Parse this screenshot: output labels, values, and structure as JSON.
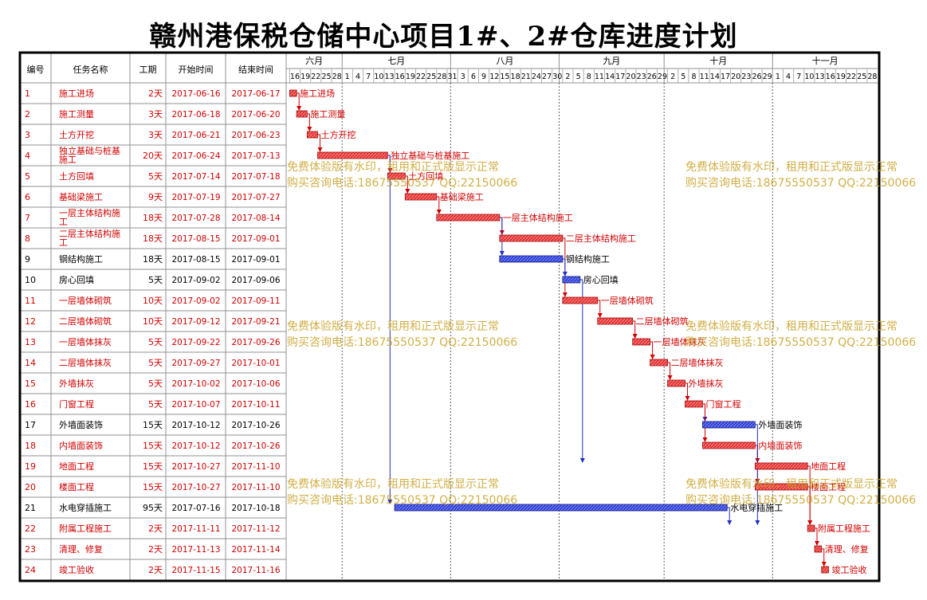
{
  "title": "赣州港保税仓储中心项目1#、2#仓库进度计划",
  "colors": {
    "critical": "#e03030",
    "normal": "#3040d0",
    "critical_text": "#d00000",
    "normal_text": "#000000",
    "watermark": "#c9a227"
  },
  "table": {
    "headers": [
      "编号",
      "任务名称",
      "工期",
      "开始时间",
      "结束时间"
    ]
  },
  "timeline": {
    "months": [
      {
        "label": "六月",
        "start": "2017-06-15",
        "end": "2017-06-30"
      },
      {
        "label": "七月",
        "start": "2017-07-01",
        "end": "2017-07-31"
      },
      {
        "label": "八月",
        "start": "2017-08-01",
        "end": "2017-08-31"
      },
      {
        "label": "九月",
        "start": "2017-09-01",
        "end": "2017-09-30"
      },
      {
        "label": "十月",
        "start": "2017-10-01",
        "end": "2017-10-31"
      },
      {
        "label": "十一月",
        "start": "2017-11-01",
        "end": "2017-11-30"
      }
    ],
    "days": [
      "16",
      "19",
      "22",
      "25",
      "28",
      "1",
      "4",
      "7",
      "10",
      "13",
      "16",
      "19",
      "22",
      "25",
      "28",
      "31",
      "3",
      "6",
      "9",
      "12",
      "15",
      "18",
      "21",
      "24",
      "27",
      "30",
      "2",
      "5",
      "8",
      "11",
      "14",
      "17",
      "20",
      "23",
      "26",
      "29",
      "2",
      "5",
      "8",
      "11",
      "14",
      "17",
      "20",
      "23",
      "26",
      "29",
      "1",
      "4",
      "7",
      "10",
      "13",
      "16",
      "19",
      "22",
      "25",
      "28"
    ]
  },
  "chart_data": {
    "type": "gantt",
    "x_axis": "date",
    "xlim": [
      "2017-06-15",
      "2017-11-30"
    ],
    "tasks": [
      {
        "id": "1",
        "name": "施工进场",
        "duration": "2天",
        "start": "2017-06-16",
        "end": "2017-06-17",
        "critical": true
      },
      {
        "id": "2",
        "name": "施工测量",
        "duration": "3天",
        "start": "2017-06-18",
        "end": "2017-06-20",
        "critical": true
      },
      {
        "id": "3",
        "name": "土方开挖",
        "duration": "3天",
        "start": "2017-06-21",
        "end": "2017-06-23",
        "critical": true
      },
      {
        "id": "4",
        "name": "独立基础与桩基施工",
        "duration": "20天",
        "start": "2017-06-24",
        "end": "2017-07-13",
        "critical": true
      },
      {
        "id": "5",
        "name": "土方回填",
        "duration": "5天",
        "start": "2017-07-14",
        "end": "2017-07-18",
        "critical": true
      },
      {
        "id": "6",
        "name": "基础梁施工",
        "duration": "9天",
        "start": "2017-07-19",
        "end": "2017-07-27",
        "critical": true
      },
      {
        "id": "7",
        "name": "一层主体结构施工",
        "duration": "18天",
        "start": "2017-07-28",
        "end": "2017-08-14",
        "critical": true
      },
      {
        "id": "8",
        "name": "二层主体结构施工",
        "duration": "18天",
        "start": "2017-08-15",
        "end": "2017-09-01",
        "critical": true
      },
      {
        "id": "9",
        "name": "钢结构施工",
        "duration": "18天",
        "start": "2017-08-15",
        "end": "2017-09-01",
        "critical": false
      },
      {
        "id": "10",
        "name": "房心回填",
        "duration": "5天",
        "start": "2017-09-02",
        "end": "2017-09-06",
        "critical": false
      },
      {
        "id": "11",
        "name": "一层墙体砌筑",
        "duration": "10天",
        "start": "2017-09-02",
        "end": "2017-09-11",
        "critical": true
      },
      {
        "id": "12",
        "name": "二层墙体砌筑",
        "duration": "10天",
        "start": "2017-09-12",
        "end": "2017-09-21",
        "critical": true
      },
      {
        "id": "13",
        "name": "一层墙体抹灰",
        "duration": "5天",
        "start": "2017-09-22",
        "end": "2017-09-26",
        "critical": true
      },
      {
        "id": "14",
        "name": "二层墙体抹灰",
        "duration": "5天",
        "start": "2017-09-27",
        "end": "2017-10-01",
        "critical": true
      },
      {
        "id": "15",
        "name": "外墙抹灰",
        "duration": "5天",
        "start": "2017-10-02",
        "end": "2017-10-06",
        "critical": true
      },
      {
        "id": "16",
        "name": "门窗工程",
        "duration": "5天",
        "start": "2017-10-07",
        "end": "2017-10-11",
        "critical": true
      },
      {
        "id": "17",
        "name": "外墙面装饰",
        "duration": "15天",
        "start": "2017-10-12",
        "end": "2017-10-26",
        "critical": false
      },
      {
        "id": "18",
        "name": "内墙面装饰",
        "duration": "15天",
        "start": "2017-10-12",
        "end": "2017-10-26",
        "critical": true
      },
      {
        "id": "19",
        "name": "地面工程",
        "duration": "15天",
        "start": "2017-10-27",
        "end": "2017-11-10",
        "critical": true
      },
      {
        "id": "20",
        "name": "楼面工程",
        "duration": "15天",
        "start": "2017-10-27",
        "end": "2017-11-10",
        "critical": true
      },
      {
        "id": "21",
        "name": "水电穿插施工",
        "duration": "95天",
        "start": "2017-07-16",
        "end": "2017-10-18",
        "critical": false
      },
      {
        "id": "22",
        "name": "附属工程施工",
        "duration": "2天",
        "start": "2017-11-11",
        "end": "2017-11-12",
        "critical": true
      },
      {
        "id": "23",
        "name": "清理、修复",
        "duration": "2天",
        "start": "2017-11-13",
        "end": "2017-11-14",
        "critical": true
      },
      {
        "id": "24",
        "name": "竣工验收",
        "duration": "2天",
        "start": "2017-11-15",
        "end": "2017-11-16",
        "critical": true
      }
    ],
    "links": [
      [
        "1",
        "2"
      ],
      [
        "2",
        "3"
      ],
      [
        "3",
        "4"
      ],
      [
        "4",
        "5"
      ],
      [
        "5",
        "6"
      ],
      [
        "6",
        "7"
      ],
      [
        "7",
        "8"
      ],
      [
        "7",
        "9"
      ],
      [
        "8",
        "11"
      ],
      [
        "9",
        "10"
      ],
      [
        "11",
        "12"
      ],
      [
        "12",
        "13"
      ],
      [
        "13",
        "14"
      ],
      [
        "14",
        "15"
      ],
      [
        "15",
        "16"
      ],
      [
        "16",
        "17"
      ],
      [
        "16",
        "18"
      ],
      [
        "10",
        "19"
      ],
      [
        "18",
        "19"
      ],
      [
        "18",
        "20"
      ],
      [
        "4",
        "21"
      ],
      [
        "17",
        "22"
      ],
      [
        "19",
        "22"
      ],
      [
        "20",
        "22"
      ],
      [
        "21",
        "22"
      ],
      [
        "22",
        "23"
      ],
      [
        "23",
        "24"
      ]
    ]
  },
  "watermark": {
    "line1": "免费体验版有水印，租用和正式版显示正常",
    "line2": "购买咨询电话:18675550537 QQ:22150066"
  }
}
